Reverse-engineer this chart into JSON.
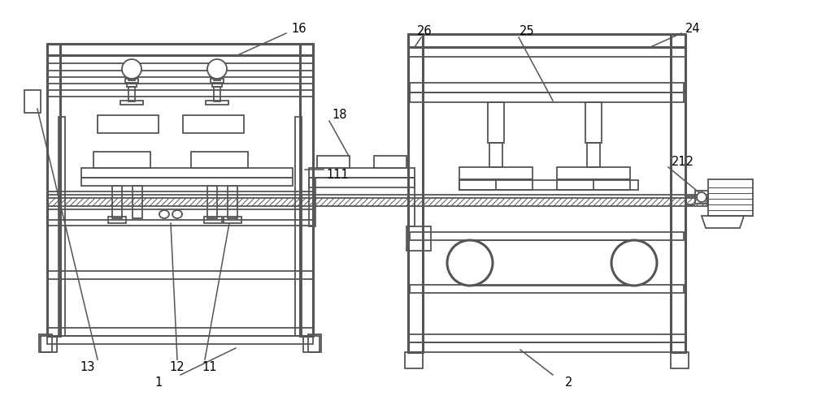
{
  "bg_color": "#ffffff",
  "line_color": "#555555",
  "lw": 1.3,
  "tlw": 2.2
}
